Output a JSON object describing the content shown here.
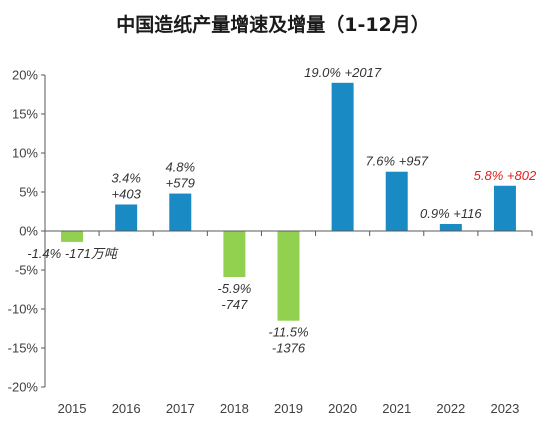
{
  "chart_data": {
    "type": "bar",
    "title": "中国造纸产量增速及增量（1-12月）",
    "categories": [
      "2015",
      "2016",
      "2017",
      "2018",
      "2019",
      "2020",
      "2021",
      "2022",
      "2023"
    ],
    "values": [
      -1.4,
      3.4,
      4.8,
      -5.9,
      -11.5,
      19.0,
      7.6,
      0.9,
      5.8
    ],
    "data_labels": [
      [
        "-1.4% -171万吨"
      ],
      [
        "3.4%",
        "+403"
      ],
      [
        "4.8%",
        "+579"
      ],
      [
        "-5.9%",
        "-747"
      ],
      [
        "-11.5%",
        "-1376"
      ],
      [
        "19.0% +2017"
      ],
      [
        "7.6% +957"
      ],
      [
        "0.9% +116"
      ],
      [
        "5.8% +802"
      ]
    ],
    "highlight_index": 8,
    "yticks": [
      "-20%",
      "-15%",
      "-10%",
      "-5%",
      "0%",
      "5%",
      "10%",
      "15%",
      "20%"
    ],
    "ylim": [
      -20,
      20
    ],
    "xlabel": "",
    "ylabel": "",
    "grid": false,
    "colors": {
      "positive": "#1a8ac4",
      "negative": "#92d050",
      "highlight_label": "#e02020",
      "axis": "#595959"
    }
  }
}
